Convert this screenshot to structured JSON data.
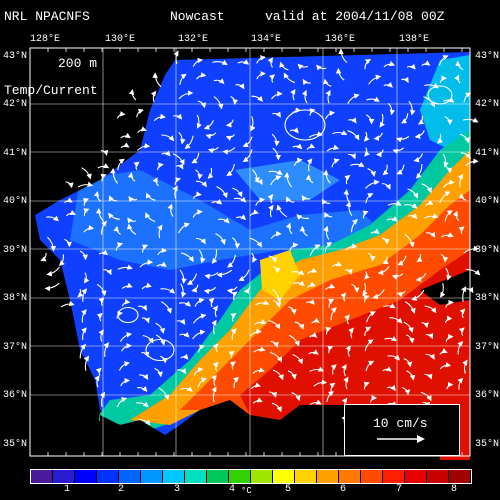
{
  "header": {
    "model": "NRL NPACNFS",
    "product": "Nowcast",
    "valid": "valid at 2004/11/08 00Z"
  },
  "panel": {
    "depth": "200 m",
    "field": "Temp/Current"
  },
  "longitude_labels": [
    "128°E",
    "130°E",
    "132°E",
    "134°E",
    "136°E",
    "138°E"
  ],
  "latitude_labels": [
    "43°N",
    "42°N",
    "41°N",
    "40°N",
    "39°N",
    "38°N",
    "37°N",
    "36°N",
    "35°N"
  ],
  "reference_vector": {
    "label": "10 cm/s"
  },
  "colorbar": {
    "ticks": [
      "1",
      "2",
      "3",
      "4",
      "5",
      "6",
      "7",
      "8"
    ],
    "unit": "°C",
    "colors": [
      "#4a1a9a",
      "#2a1ad0",
      "#0000ff",
      "#0032ff",
      "#0064ff",
      "#0096ff",
      "#00c8ff",
      "#00e0c0",
      "#00c85a",
      "#32d200",
      "#a0e600",
      "#ffff00",
      "#ffd200",
      "#ffa000",
      "#ff7800",
      "#ff4b00",
      "#ff1e00",
      "#e60000",
      "#c80000",
      "#a00000"
    ]
  },
  "colors": {
    "cold": "#0a3cff",
    "warm": "#ff2a00",
    "land": "#000000",
    "arrows": "#ffffff"
  }
}
